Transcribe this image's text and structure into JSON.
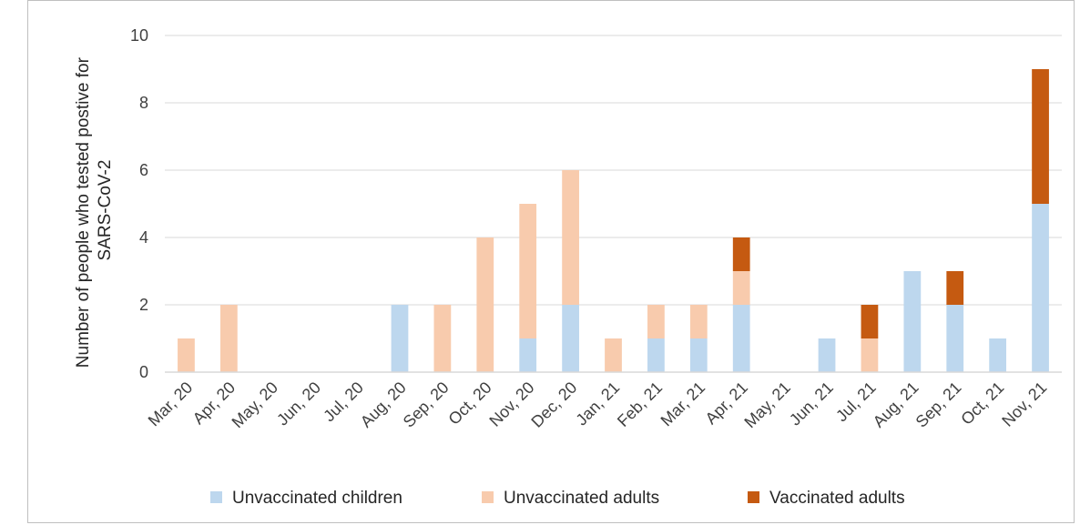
{
  "chart_data": {
    "type": "bar",
    "stacked": true,
    "title": "",
    "xlabel": "",
    "ylabel": "Number of people who tested postive for SARS-CoV-2",
    "ylabel_lines": [
      "Number of people who tested postive for",
      "SARS-CoV-2"
    ],
    "ylim": [
      0,
      10
    ],
    "yticks": [
      0,
      2,
      4,
      6,
      8,
      10
    ],
    "grid": true,
    "legend_position": "bottom",
    "categories": [
      "Mar, 20",
      "Apr, 20",
      "May, 20",
      "Jun, 20",
      "Jul, 20",
      "Aug, 20",
      "Sep, 20",
      "Oct, 20",
      "Nov, 20",
      "Dec, 20",
      "Jan, 21",
      "Feb, 21",
      "Mar, 21",
      "Apr, 21",
      "May, 21",
      "Jun, 21",
      "Jul, 21",
      "Aug, 21",
      "Sep, 21",
      "Oct, 21",
      "Nov, 21"
    ],
    "series": [
      {
        "name": "Unvaccinated children",
        "color": "#bdd7ee",
        "values": [
          0,
          0,
          0,
          0,
          0,
          2,
          0,
          0,
          1,
          2,
          0,
          1,
          1,
          2,
          0,
          1,
          0,
          3,
          2,
          1,
          5
        ]
      },
      {
        "name": "Unvaccinated adults",
        "color": "#f8cbad",
        "values": [
          1,
          2,
          0,
          0,
          0,
          0,
          2,
          4,
          4,
          4,
          1,
          1,
          1,
          1,
          0,
          0,
          1,
          0,
          0,
          0,
          0
        ]
      },
      {
        "name": "Vaccinated adults",
        "color": "#c55a11",
        "values": [
          0,
          0,
          0,
          0,
          0,
          0,
          0,
          0,
          0,
          0,
          0,
          0,
          0,
          1,
          0,
          0,
          1,
          0,
          1,
          0,
          4
        ]
      }
    ]
  }
}
